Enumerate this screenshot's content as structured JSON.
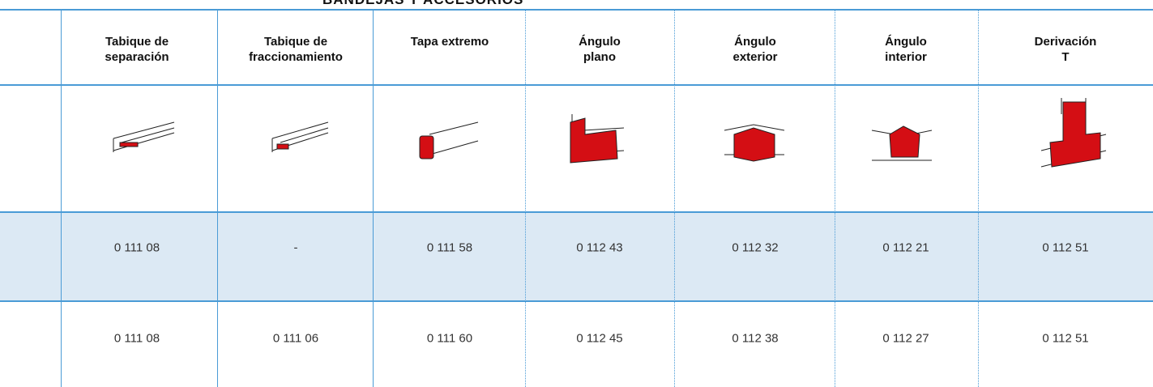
{
  "header": {
    "title": "BANDEJAS Y ACCESORIOS"
  },
  "table": {
    "columns": [
      [
        "Tabique de",
        "separación"
      ],
      [
        "Tabique de",
        "fraccionamiento"
      ],
      [
        "Tapa extremo"
      ],
      [
        "Ángulo",
        "plano"
      ],
      [
        "Ángulo",
        "exterior"
      ],
      [
        "Ángulo",
        "interior"
      ],
      [
        "Derivación",
        "T"
      ]
    ],
    "rows": [
      [
        "0 111 08",
        "-",
        "0 111 58",
        "0 112 43",
        "0 112 32",
        "0 112 21",
        "0 112 51"
      ],
      [
        "0 111 08",
        "0 111 06",
        "0 111 60",
        "0 112 45",
        "0 112 38",
        "0 112 27",
        "0 112 51"
      ]
    ]
  }
}
